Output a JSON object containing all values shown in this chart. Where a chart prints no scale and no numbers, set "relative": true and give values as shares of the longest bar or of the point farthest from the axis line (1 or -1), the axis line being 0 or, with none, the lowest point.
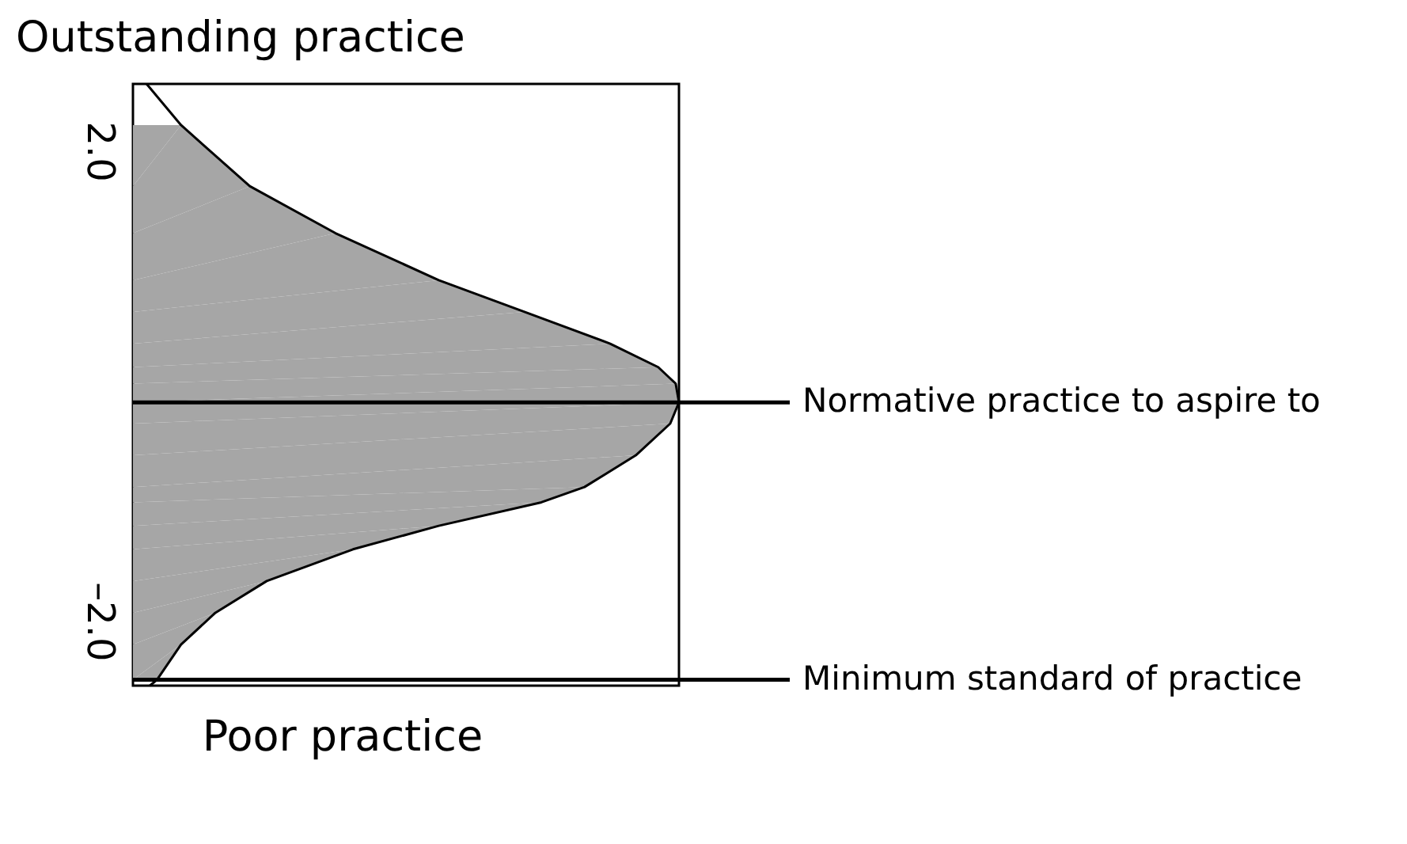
{
  "chart_data": {
    "type": "area",
    "orientation": "horizontal",
    "relative": true,
    "title": "Outstanding practice",
    "xlabel": "Poor practice",
    "ylim": [
      -2.55,
      2.57
    ],
    "yticks": [
      {
        "value": 2.0,
        "label": "2.0"
      },
      {
        "value": -2.0,
        "label": "–2.0"
      }
    ],
    "grid": false,
    "series": [
      {
        "type": "area",
        "color": "#a6a6a6",
        "x": [
          2.22,
          1.7,
          1.3,
          0.9,
          0.63,
          0.36,
          0.16,
          0.02,
          -0.14,
          -0.32,
          -0.59,
          -0.86,
          -0.99,
          -1.19,
          -1.39,
          -1.66,
          -1.93,
          -2.2,
          -2.5
        ],
        "values": [
          0.088,
          0.214,
          0.371,
          0.56,
          0.717,
          0.874,
          0.962,
          0.994,
          1.0,
          0.984,
          0.921,
          0.827,
          0.748,
          0.56,
          0.403,
          0.245,
          0.151,
          0.088,
          0.044
        ]
      },
      {
        "type": "line",
        "color": "#000000",
        "x": [
          2.57,
          2.22,
          1.7,
          1.3,
          0.9,
          0.63,
          0.36,
          0.16,
          0.02,
          -0.14,
          -0.32,
          -0.59,
          -0.86,
          -0.99,
          -1.19,
          -1.39,
          -1.66,
          -1.93,
          -2.2,
          -2.5,
          -2.55
        ],
        "values": [
          0.025,
          0.088,
          0.214,
          0.371,
          0.56,
          0.717,
          0.874,
          0.962,
          0.994,
          1.0,
          0.984,
          0.921,
          0.827,
          0.748,
          0.56,
          0.403,
          0.245,
          0.151,
          0.088,
          0.044,
          0.031
        ]
      }
    ],
    "ref_lines": [
      {
        "axis": "y",
        "value": -0.14,
        "label": "Normative practice to aspire to",
        "color": "#000000"
      },
      {
        "axis": "y",
        "value": -2.5,
        "label": "Minimum standard of practice",
        "color": "#000000"
      }
    ]
  }
}
